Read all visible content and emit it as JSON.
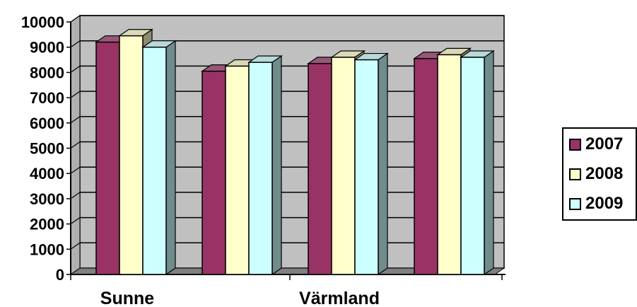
{
  "chart_data": {
    "type": "bar",
    "categories": [
      "Sunne",
      "",
      "Värmland",
      ""
    ],
    "x_tick_labels": [
      "Sunne",
      "Värmland"
    ],
    "series": [
      {
        "name": "2007",
        "values": [
          9200,
          8050,
          8350,
          8550
        ],
        "color": "#993366"
      },
      {
        "name": "2008",
        "values": [
          9450,
          8250,
          8600,
          8700
        ],
        "color": "#ffffcc"
      },
      {
        "name": "2009",
        "values": [
          9000,
          8400,
          8500,
          8600
        ],
        "color": "#ccffff"
      }
    ],
    "y_ticks": [
      "0",
      "1000",
      "2000",
      "3000",
      "4000",
      "5000",
      "6000",
      "7000",
      "8000",
      "9000",
      "10000"
    ],
    "ylim": [
      0,
      10000
    ],
    "title": "",
    "xlabel": "",
    "ylabel": "",
    "grid": true,
    "legend": "right",
    "three_d": true,
    "wall_color": "#c0c0c0"
  }
}
